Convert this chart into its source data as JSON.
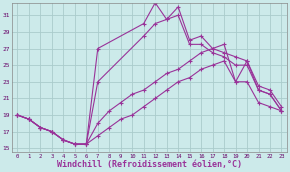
{
  "background_color": "#cceaea",
  "grid_color": "#aacccc",
  "line_color": "#993399",
  "marker_color": "#993399",
  "xlabel": "Windchill (Refroidissement éolien,°C)",
  "xlabel_fontsize": 6.0,
  "xlim": [
    -0.5,
    23.5
  ],
  "ylim": [
    14.5,
    32.5
  ],
  "yticks": [
    15,
    17,
    19,
    21,
    23,
    25,
    27,
    29,
    31
  ],
  "ytick_labels": [
    "15",
    "17",
    "19",
    "21",
    "23",
    "25",
    "27",
    "29",
    "31"
  ],
  "xticks": [
    0,
    1,
    2,
    3,
    4,
    5,
    6,
    7,
    8,
    9,
    10,
    11,
    12,
    13,
    14,
    15,
    16,
    17,
    18,
    19,
    20,
    21,
    22,
    23
  ],
  "xtick_labels": [
    "0",
    "1",
    "2",
    "3",
    "4",
    "5",
    "6",
    "7",
    "8",
    "9",
    "10",
    "11",
    "12",
    "13",
    "14",
    "15",
    "16",
    "17",
    "18",
    "19",
    "20",
    "21",
    "22",
    "23"
  ],
  "series": [
    {
      "x": [
        0,
        1,
        2,
        3,
        4,
        5,
        6,
        7,
        11,
        12,
        13,
        14,
        15,
        16,
        17,
        18,
        19,
        20,
        21,
        22,
        23
      ],
      "y": [
        19,
        18.5,
        17.5,
        17,
        16,
        15.5,
        15.5,
        27,
        30,
        32.5,
        30.5,
        32,
        28,
        28.5,
        27,
        26.5,
        26,
        25.5,
        22.5,
        22,
        20
      ]
    },
    {
      "x": [
        0,
        1,
        2,
        3,
        4,
        5,
        6,
        7,
        11,
        12,
        13,
        14,
        15,
        16,
        17,
        18,
        19,
        20,
        21,
        22,
        23
      ],
      "y": [
        19,
        18.5,
        17.5,
        17,
        16,
        15.5,
        15.5,
        23,
        28.5,
        30,
        30.5,
        31,
        27.5,
        27.5,
        26.5,
        26,
        25,
        25,
        22,
        21.5,
        19.5
      ]
    },
    {
      "x": [
        0,
        1,
        2,
        3,
        4,
        5,
        6,
        7,
        8,
        9,
        10,
        11,
        12,
        13,
        14,
        15,
        16,
        17,
        18,
        19,
        20,
        21,
        22,
        23
      ],
      "y": [
        19,
        18.5,
        17.5,
        17,
        16,
        15.5,
        15.5,
        18,
        19.5,
        20.5,
        21.5,
        22,
        23,
        24,
        24.5,
        25.5,
        26.5,
        27,
        27.5,
        23,
        25.5,
        22,
        21.5,
        19.5
      ]
    },
    {
      "x": [
        0,
        1,
        2,
        3,
        4,
        5,
        6,
        7,
        8,
        9,
        10,
        11,
        12,
        13,
        14,
        15,
        16,
        17,
        18,
        19,
        20,
        21,
        22,
        23
      ],
      "y": [
        19,
        18.5,
        17.5,
        17,
        16,
        15.5,
        15.5,
        16.5,
        17.5,
        18.5,
        19,
        20,
        21,
        22,
        23,
        23.5,
        24.5,
        25,
        25.5,
        23,
        23,
        20.5,
        20,
        19.5
      ]
    }
  ]
}
